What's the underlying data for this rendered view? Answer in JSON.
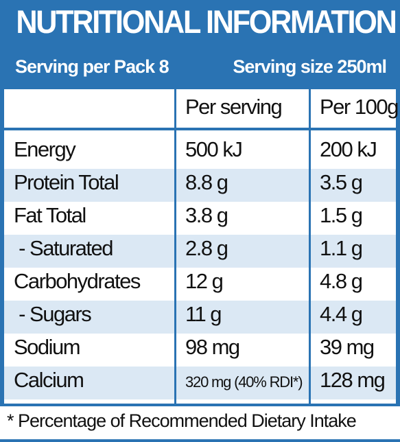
{
  "title": "NUTRITIONAL INFORMATION",
  "serving_per_pack": "Serving per Pack 8",
  "serving_size": "Serving size 250ml",
  "columns": [
    "",
    "Per serving",
    "Per 100g"
  ],
  "rows": [
    {
      "nutrient": "Energy",
      "per_serving": "500 kJ",
      "per_100g": "200 kJ"
    },
    {
      "nutrient": "Protein Total",
      "per_serving": "8.8 g",
      "per_100g": "3.5 g"
    },
    {
      "nutrient": "Fat Total",
      "per_serving": "3.8 g",
      "per_100g": "1.5 g"
    },
    {
      "nutrient": " - Saturated",
      "per_serving": "2.8 g",
      "per_100g": "1.1 g"
    },
    {
      "nutrient": "Carbohydrates",
      "per_serving": "12 g",
      "per_100g": "4.8 g"
    },
    {
      "nutrient": " - Sugars",
      "per_serving": "11 g",
      "per_100g": "4.4 g"
    },
    {
      "nutrient": "Sodium",
      "per_serving": "98 mg",
      "per_100g": "39 mg"
    },
    {
      "nutrient": "Calcium",
      "per_serving": "320 mg (40% RDI*)",
      "per_100g": "128 mg"
    }
  ],
  "footnote": "* Percentage of Recommended Dietary Intake",
  "colors": {
    "brand_blue": "#2a73b3",
    "row_shade": "#dbe8f4"
  }
}
